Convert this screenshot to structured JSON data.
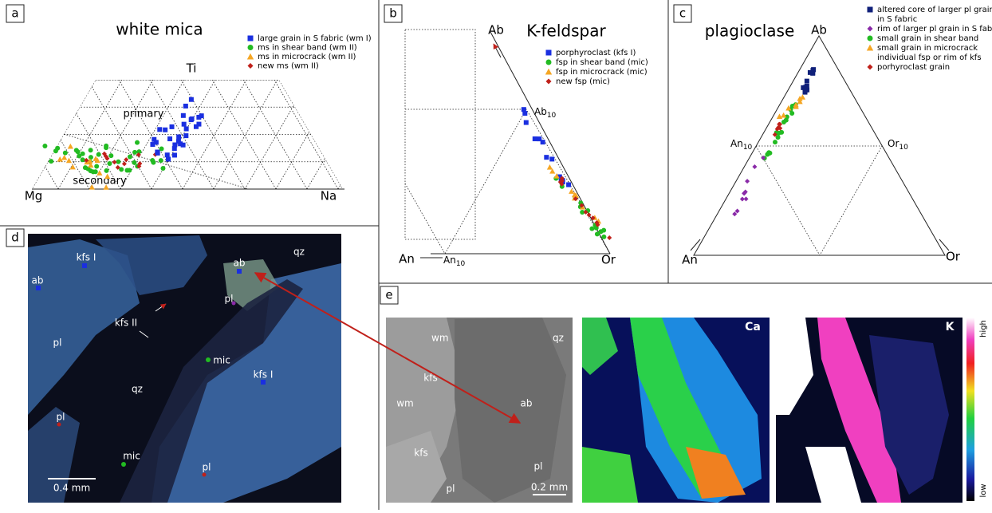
{
  "panels": {
    "a": {
      "label": "a",
      "title": "white mica",
      "apex": "Ti",
      "left": "Mg",
      "right": "Na",
      "fields": [
        "primary",
        "secondary"
      ],
      "legend": [
        {
          "text": "large grain in S fabric (wm I)",
          "color": "#1a2fe0",
          "marker": "square"
        },
        {
          "text": "ms in shear band (wm II)",
          "color": "#22bb22",
          "marker": "circle"
        },
        {
          "text": "ms in microcrack (wm II)",
          "color": "#f5a623",
          "marker": "triangle"
        },
        {
          "text": "new ms (wm II)",
          "color": "#c0201a",
          "marker": "diamond"
        }
      ]
    },
    "b": {
      "label": "b",
      "title": "K-feldspar",
      "apex": "Ab",
      "left": "An",
      "right": "Or",
      "ab10": {
        "base": "Ab",
        "sub": "10"
      },
      "an10": {
        "base": "An",
        "sub": "10"
      },
      "legend": [
        {
          "text": "porphyroclast (kfs I)",
          "color": "#1a2fe0",
          "marker": "square"
        },
        {
          "text": "fsp in shear band (mic)",
          "color": "#22bb22",
          "marker": "circle"
        },
        {
          "text": "fsp in microcrack (mic)",
          "color": "#f5a623",
          "marker": "triangle"
        },
        {
          "text": "new fsp (mic)",
          "color": "#c0201a",
          "marker": "diamond"
        }
      ]
    },
    "c": {
      "label": "c",
      "title": "plagioclase",
      "apex": "Ab",
      "left": "An",
      "right": "Or",
      "an10": {
        "base": "An",
        "sub": "10"
      },
      "or10": {
        "base": "Or",
        "sub": "10"
      },
      "legend": [
        {
          "text": [
            "altered core of larger pl grain",
            "in S fabric"
          ],
          "color": "#10207a",
          "marker": "square"
        },
        {
          "text": [
            "rim of larger pl grain in S fabric"
          ],
          "color": "#8a2aa8",
          "marker": "diamond"
        },
        {
          "text": [
            "small grain in shear band"
          ],
          "color": "#22bb22",
          "marker": "circle"
        },
        {
          "text": [
            "small grain in microcrack"
          ],
          "color": "#f5a623",
          "marker": "triangle"
        },
        {
          "text": [
            "individual fsp or rim of kfs"
          ],
          "color": null,
          "marker": null
        },
        {
          "text": [
            "porhyroclast grain"
          ],
          "color": "#c0201a",
          "marker": "diamond"
        }
      ]
    },
    "d": {
      "label": "d",
      "labels": [
        "kfs I",
        "ab",
        "qz",
        "ab",
        "pl",
        "kfs II",
        "pl",
        "mic",
        "qz",
        "kfs I",
        "pl",
        "mic",
        "pl"
      ],
      "scale": "0.4 mm"
    },
    "e": {
      "label": "e",
      "bse_labels": [
        "wm",
        "qz",
        "kfs",
        "wm",
        "ab",
        "kfs",
        "pl",
        "pl"
      ],
      "scale": "0.2 mm",
      "maps": [
        "Ca",
        "K"
      ],
      "colorbar": [
        "high",
        "low"
      ]
    }
  }
}
